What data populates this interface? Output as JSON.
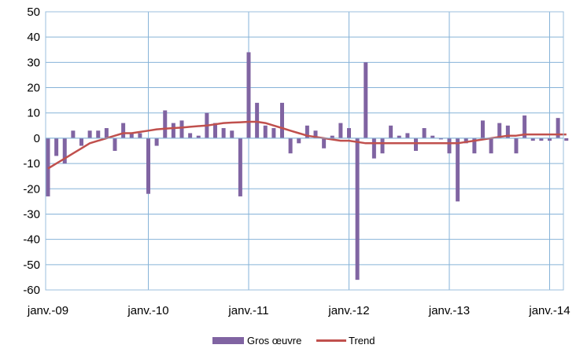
{
  "chart_data": {
    "type": "bar",
    "title": "",
    "xlabel": "",
    "ylabel": "",
    "ylim": [
      -60,
      50
    ],
    "yticks": [
      -60,
      -50,
      -40,
      -30,
      -20,
      -10,
      0,
      10,
      20,
      30,
      40,
      50
    ],
    "grid": true,
    "legend_position": "bottom",
    "x_tick_labels": [
      "janv.-09",
      "janv.-10",
      "janv.-11",
      "janv.-12",
      "janv.-13",
      "janv.-14"
    ],
    "series": [
      {
        "name": "Gros œuvre",
        "type": "bar",
        "color": "#8064a2",
        "values": [
          -23,
          -7,
          -10,
          3,
          -3,
          3,
          3,
          4,
          -5,
          6,
          2,
          2,
          -22,
          -3,
          11,
          6,
          7,
          2,
          1,
          10,
          6,
          4,
          3,
          -23,
          34,
          14,
          5,
          4,
          14,
          -6,
          -2,
          5,
          3,
          -4,
          1,
          6,
          4,
          -56,
          30,
          -8,
          -6,
          5,
          1,
          2,
          -5,
          4,
          1,
          0,
          -6,
          -25,
          -2,
          -6,
          7,
          -6,
          6,
          5,
          -6,
          9,
          -1,
          -1,
          -1,
          8,
          -1
        ]
      },
      {
        "name": "Trend",
        "type": "line",
        "color": "#c0504d",
        "values": [
          -12,
          -10,
          -8,
          -6,
          -4,
          -2,
          -1,
          0,
          1,
          2,
          2,
          2.5,
          3,
          3.5,
          3.8,
          4,
          4.2,
          4.5,
          4.8,
          5,
          5.5,
          6,
          6.2,
          6.3,
          6.5,
          6.5,
          6,
          5,
          4,
          3,
          2,
          1,
          0.5,
          0,
          -0.5,
          -1,
          -1,
          -1.5,
          -2,
          -2,
          -2,
          -2,
          -2,
          -2,
          -2,
          -2,
          -2,
          -2,
          -2,
          -2,
          -1.5,
          -1,
          -0.5,
          0,
          0.5,
          1,
          1,
          1.5,
          1.5,
          1.5,
          1.5,
          1.5,
          1.5
        ]
      }
    ]
  }
}
